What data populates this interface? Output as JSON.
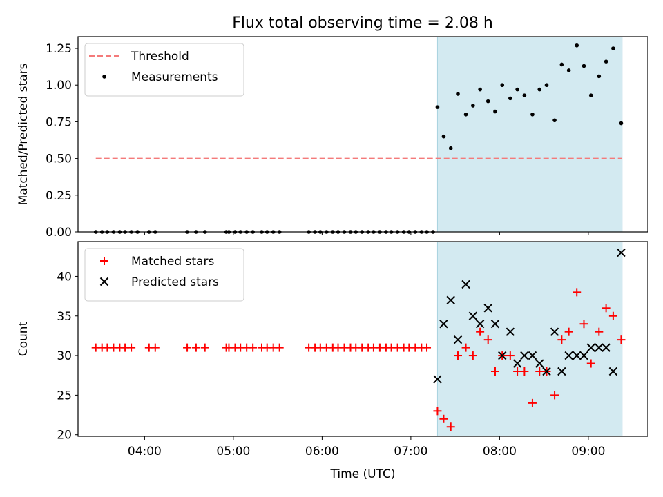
{
  "title": "Flux total observing time = 2.08 h",
  "chart_data": [
    {
      "type": "scatter",
      "ylabel": "Matched/Predicted stars",
      "xlabel": "",
      "xlim": [
        3.25,
        9.67
      ],
      "ylim": [
        0,
        1.33
      ],
      "y_ticks": [
        0.0,
        0.25,
        0.5,
        0.75,
        1.0,
        1.25
      ],
      "y_tick_labels": [
        "0.00",
        "0.25",
        "0.50",
        "0.75",
        "1.00",
        "1.25"
      ],
      "shaded_region": [
        7.3,
        9.38
      ],
      "shaded_color": "#d3eaf1",
      "threshold": {
        "name": "Threshold",
        "value": 0.5,
        "color": "#f47a7a",
        "style": "dashed"
      },
      "series": [
        {
          "name": "Measurements",
          "marker": "dot",
          "color": "#000000",
          "x": [
            3.45,
            3.52,
            3.58,
            3.65,
            3.72,
            3.78,
            3.85,
            3.92,
            4.05,
            4.12,
            4.48,
            4.58,
            4.68,
            4.92,
            4.95,
            5.02,
            5.08,
            5.15,
            5.22,
            5.32,
            5.38,
            5.45,
            5.52,
            5.85,
            5.92,
            5.98,
            6.05,
            6.12,
            6.18,
            6.25,
            6.32,
            6.38,
            6.45,
            6.52,
            6.58,
            6.65,
            6.72,
            6.78,
            6.85,
            6.92,
            6.98,
            7.05,
            7.12,
            7.18,
            7.25,
            7.3,
            7.37,
            7.45,
            7.53,
            7.62,
            7.7,
            7.78,
            7.87,
            7.95,
            8.03,
            8.12,
            8.2,
            8.28,
            8.37,
            8.45,
            8.53,
            8.62,
            8.7,
            8.78,
            8.87,
            8.95,
            9.03,
            9.12,
            9.2,
            9.28,
            9.37
          ],
          "y": [
            0,
            0,
            0,
            0,
            0,
            0,
            0,
            0,
            0,
            0,
            0,
            0,
            0,
            0,
            0,
            0,
            0,
            0,
            0,
            0,
            0,
            0,
            0,
            0,
            0,
            0,
            0,
            0,
            0,
            0,
            0,
            0,
            0,
            0,
            0,
            0,
            0,
            0,
            0,
            0,
            0,
            0,
            0,
            0,
            0,
            0.85,
            0.65,
            0.57,
            0.94,
            0.8,
            0.86,
            0.97,
            0.89,
            0.82,
            1.0,
            0.91,
            0.97,
            0.93,
            0.8,
            0.97,
            1.0,
            0.76,
            1.14,
            1.1,
            1.27,
            1.13,
            0.93,
            1.06,
            1.16,
            1.25,
            0.74
          ]
        }
      ]
    },
    {
      "type": "scatter",
      "ylabel": "Count",
      "xlabel": "Time (UTC)",
      "xlim": [
        3.25,
        9.67
      ],
      "ylim": [
        19.8,
        44.4
      ],
      "y_ticks": [
        20,
        25,
        30,
        35,
        40
      ],
      "y_tick_labels": [
        "20",
        "25",
        "30",
        "35",
        "40"
      ],
      "x_ticks": [
        4,
        5,
        6,
        7,
        8,
        9
      ],
      "x_tick_labels": [
        "04:00",
        "05:00",
        "06:00",
        "07:00",
        "08:00",
        "09:00"
      ],
      "shaded_region": [
        7.3,
        9.38
      ],
      "shaded_color": "#d3eaf1",
      "series": [
        {
          "name": "Matched stars",
          "marker": "plus",
          "color": "#ff0000",
          "x": [
            3.45,
            3.52,
            3.58,
            3.65,
            3.72,
            3.78,
            3.85,
            4.05,
            4.12,
            4.48,
            4.58,
            4.68,
            4.92,
            4.95,
            5.02,
            5.08,
            5.15,
            5.22,
            5.32,
            5.38,
            5.45,
            5.52,
            5.85,
            5.92,
            5.98,
            6.05,
            6.12,
            6.18,
            6.25,
            6.32,
            6.38,
            6.45,
            6.52,
            6.58,
            6.65,
            6.72,
            6.78,
            6.85,
            6.92,
            6.98,
            7.05,
            7.12,
            7.18,
            7.3,
            7.37,
            7.45,
            7.53,
            7.62,
            7.7,
            7.78,
            7.87,
            7.95,
            8.03,
            8.12,
            8.2,
            8.28,
            8.37,
            8.45,
            8.53,
            8.62,
            8.7,
            8.78,
            8.87,
            8.95,
            9.03,
            9.12,
            9.2,
            9.28,
            9.37
          ],
          "y": [
            31,
            31,
            31,
            31,
            31,
            31,
            31,
            31,
            31,
            31,
            31,
            31,
            31,
            31,
            31,
            31,
            31,
            31,
            31,
            31,
            31,
            31,
            31,
            31,
            31,
            31,
            31,
            31,
            31,
            31,
            31,
            31,
            31,
            31,
            31,
            31,
            31,
            31,
            31,
            31,
            31,
            31,
            31,
            23,
            22,
            21,
            30,
            31,
            30,
            33,
            32,
            28,
            30,
            30,
            28,
            28,
            24,
            28,
            28,
            25,
            32,
            33,
            38,
            34,
            29,
            33,
            36,
            35,
            32
          ]
        },
        {
          "name": "Predicted stars",
          "marker": "x",
          "color": "#000000",
          "x": [
            7.3,
            7.37,
            7.45,
            7.53,
            7.62,
            7.7,
            7.78,
            7.87,
            7.95,
            8.03,
            8.12,
            8.2,
            8.28,
            8.37,
            8.45,
            8.53,
            8.62,
            8.7,
            8.78,
            8.87,
            8.95,
            9.03,
            9.12,
            9.2,
            9.28,
            9.37
          ],
          "y": [
            27,
            34,
            37,
            32,
            39,
            35,
            34,
            36,
            34,
            30,
            33,
            29,
            30,
            30,
            29,
            28,
            33,
            28,
            30,
            30,
            30,
            31,
            31,
            31,
            28,
            43
          ]
        }
      ]
    }
  ]
}
